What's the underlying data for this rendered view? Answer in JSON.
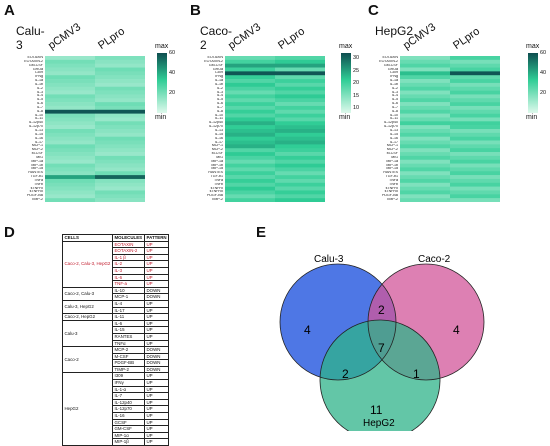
{
  "panels": {
    "A": {
      "letter": "A",
      "cell": "Calu-3",
      "cols": [
        "pCMV3",
        "PLpro"
      ],
      "scale": {
        "title": "max",
        "ticks": [
          "60",
          "40",
          "20"
        ],
        "min": "min"
      }
    },
    "B": {
      "letter": "B",
      "cell": "Caco-2",
      "cols": [
        "pCMV3",
        "PLpro"
      ],
      "scale": {
        "title": "max",
        "ticks": [
          "30",
          "25",
          "20",
          "15",
          "10"
        ],
        "min": "min"
      }
    },
    "C": {
      "letter": "C",
      "cell": "HepG2",
      "cols": [
        "pCMV3",
        "PLpro"
      ],
      "scale": {
        "title": "max",
        "ticks": [
          "60",
          "40",
          "20"
        ],
        "min": "min"
      }
    },
    "D": {
      "letter": "D"
    },
    "E": {
      "letter": "E"
    }
  },
  "heatmap_rows": [
    "EOTAXIN",
    "EOTAXIN-2",
    "GM-CSF",
    "GROa",
    "I-309",
    "IFNg",
    "IL-1a",
    "IL-1b",
    "IL-2",
    "IL-3",
    "IL-4",
    "IL-5",
    "IL-6",
    "IL-7",
    "IL-8",
    "IL-10",
    "IL-11",
    "IL-12p40",
    "IL-12p70",
    "IL-13",
    "IL-15",
    "IL-16",
    "IL-17",
    "MCP-1",
    "MCP-2",
    "M-CSF",
    "MIG",
    "MIP-1a",
    "MIP-1b",
    "MIP-1d",
    "RANTES",
    "TGF-b1",
    "TNFa",
    "TNFb",
    "sTNFRI",
    "sTNFRII",
    "PDGF-BB",
    "TIMP-2"
  ],
  "table": {
    "headers": [
      "CELLS",
      "MOLECULES",
      "PATTERN"
    ],
    "groups": [
      {
        "cells": "Caco-2, Calu-3, HepG2",
        "red": true,
        "rows": [
          [
            "EOTAXIN",
            "UP"
          ],
          [
            "EOTAXIN-2",
            "UP"
          ],
          [
            "IL-1 β",
            "UP"
          ],
          [
            "IL-2",
            "UP"
          ],
          [
            "IL-3",
            "UP"
          ],
          [
            "IL-6",
            "UP"
          ],
          [
            "TNF-a",
            "UP"
          ]
        ]
      },
      {
        "cells": "Caco-2, Calu-3",
        "red": false,
        "rows": [
          [
            "IL-10",
            "DOWN"
          ],
          [
            "MCP-1",
            "DOWN"
          ]
        ]
      },
      {
        "cells": "Calu-3, HepG2",
        "red": false,
        "rows": [
          [
            "IL-4",
            "UP"
          ],
          [
            "IL-17",
            "UP"
          ]
        ]
      },
      {
        "cells": "Caco-2, HepG2",
        "red": false,
        "rows": [
          [
            "IL-11",
            "UP"
          ]
        ]
      },
      {
        "cells": "Calu-3",
        "red": false,
        "rows": [
          [
            "IL-6",
            "UP"
          ],
          [
            "IL-15",
            "UP"
          ],
          [
            "RANTES",
            "UP"
          ],
          [
            "TNFα",
            "UP"
          ]
        ]
      },
      {
        "cells": "Caco-2",
        "red": false,
        "rows": [
          [
            "MCP-2",
            "DOWN"
          ],
          [
            "M-CSF",
            "DOWN"
          ],
          [
            "PDGF-BB",
            "DOWN"
          ],
          [
            "TIMP-2",
            "DOWN"
          ]
        ]
      },
      {
        "cells": "HepG2",
        "red": false,
        "rows": [
          [
            "I309",
            "UP"
          ],
          [
            "IFNγ",
            "UP"
          ],
          [
            "IL-1-α",
            "UP"
          ],
          [
            "IL-7",
            "UP"
          ],
          [
            "IL-12p40",
            "UP"
          ],
          [
            "IL-12p70",
            "UP"
          ],
          [
            "IL-16",
            "UP"
          ],
          [
            "GCSF",
            "UP"
          ],
          [
            "GM-CSF",
            "UP"
          ],
          [
            "MIP-1α",
            "UP"
          ],
          [
            "MIP-1β",
            "UP"
          ]
        ]
      }
    ]
  },
  "chart_data": [
    {
      "type": "heatmap",
      "title": "Calu-3",
      "x": [
        "pCMV3",
        "PLpro"
      ],
      "colorbar": {
        "range": [
          0,
          60
        ],
        "ticks": [
          20,
          40,
          60
        ],
        "top_label": "max",
        "bottom_label": "min"
      }
    },
    {
      "type": "heatmap",
      "title": "Caco-2",
      "x": [
        "pCMV3",
        "PLpro"
      ],
      "colorbar": {
        "range": [
          8,
          32
        ],
        "ticks": [
          10,
          15,
          20,
          25,
          30
        ],
        "top_label": "max",
        "bottom_label": "min"
      }
    },
    {
      "type": "heatmap",
      "title": "HepG2",
      "x": [
        "pCMV3",
        "PLpro"
      ],
      "colorbar": {
        "range": [
          0,
          60
        ],
        "ticks": [
          20,
          40,
          60
        ],
        "top_label": "max",
        "bottom_label": "min"
      }
    },
    {
      "type": "venn",
      "sets": [
        "Calu-3",
        "Caco-2",
        "HepG2"
      ],
      "regions": {
        "Calu-3 only": 4,
        "Caco-2 only": 4,
        "HepG2 only": 11,
        "Calu-3 & Caco-2": 2,
        "Calu-3 & HepG2": 2,
        "Caco-2 & HepG2": 1,
        "all three": 7
      },
      "colors": {
        "Calu-3": "#2f5fe0",
        "Caco-2": "#d2559a",
        "HepG2": "#2fb38a"
      }
    }
  ]
}
